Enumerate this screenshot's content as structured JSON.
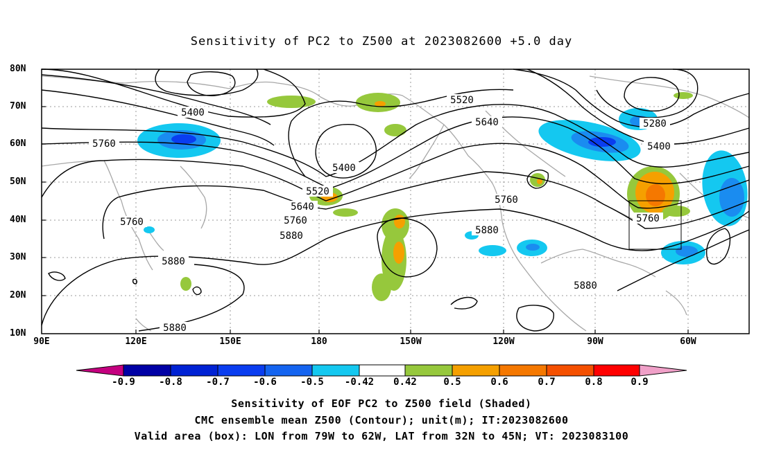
{
  "title": "Sensitivity of PC2 to Z500 at 2023082600 +5.0 day",
  "lat_labels": [
    "80N",
    "70N",
    "60N",
    "50N",
    "40N",
    "30N",
    "20N",
    "10N"
  ],
  "lon_labels": [
    "90E",
    "120E",
    "150E",
    "180",
    "150W",
    "120W",
    "90W",
    "60W"
  ],
  "contour_labels": [
    "5400",
    "5760",
    "5760",
    "5880",
    "5880",
    "5400",
    "5520",
    "5640",
    "5760",
    "5880",
    "5520",
    "5640",
    "5760",
    "5880",
    "5280",
    "5400",
    "5760"
  ],
  "colorbar": {
    "labels": [
      "-0.9",
      "-0.8",
      "-0.7",
      "-0.6",
      "-0.5",
      "-0.42",
      "0.42",
      "0.5",
      "0.6",
      "0.7",
      "0.8",
      "0.9"
    ],
    "colors": [
      "#c4007f",
      "#0000a5",
      "#0022d4",
      "#0a3df0",
      "#1464f0",
      "#1a8cf0",
      "#14c8f0",
      "#ffffff",
      "#96c83c",
      "#f5a000",
      "#f57800",
      "#f55000",
      "#ff1e1e",
      "#ff0000",
      "#f0a0c8"
    ]
  },
  "captions": [
    "Sensitivity of EOF PC2 to Z500 field (Shaded)",
    "CMC ensemble mean Z500 (Contour); unit(m); IT:2023082600",
    "Valid area (box): LON from 79W to 62W, LAT from 32N to 45N; VT: 2023083100"
  ]
}
